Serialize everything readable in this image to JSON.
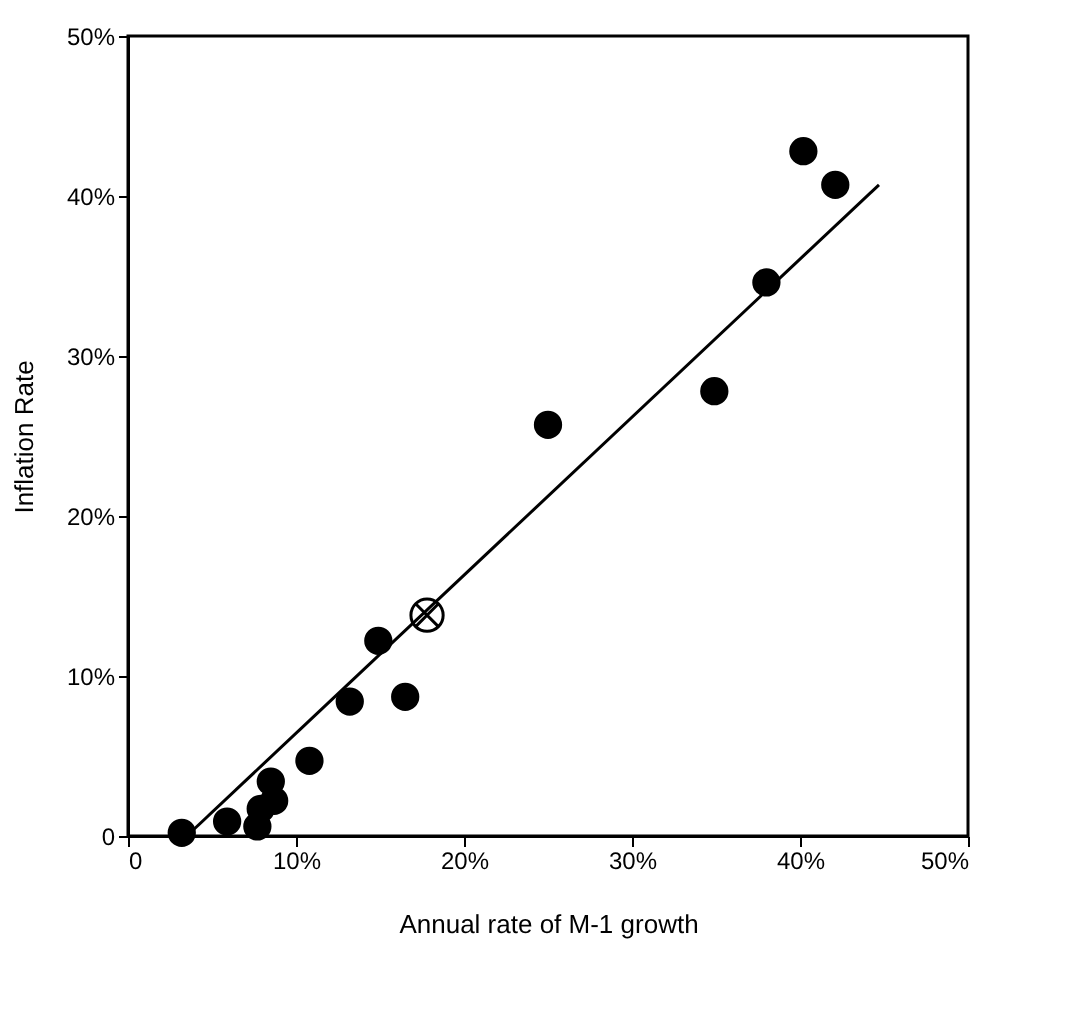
{
  "chart_data": {
    "type": "scatter",
    "xlabel": "Annual rate of M-1 growth",
    "ylabel": "Inflation Rate",
    "xlim": [
      0,
      50
    ],
    "ylim": [
      0,
      50
    ],
    "xticks": [
      {
        "value": 0,
        "label": "0"
      },
      {
        "value": 10,
        "label": "10%"
      },
      {
        "value": 20,
        "label": "20%"
      },
      {
        "value": 30,
        "label": "30%"
      },
      {
        "value": 40,
        "label": "40%"
      },
      {
        "value": 50,
        "label": "50%"
      }
    ],
    "yticks": [
      {
        "value": 0,
        "label": "0"
      },
      {
        "value": 10,
        "label": "10%"
      },
      {
        "value": 20,
        "label": "20%"
      },
      {
        "value": 30,
        "label": "30%"
      },
      {
        "value": 40,
        "label": "40%"
      },
      {
        "value": 50,
        "label": "50%"
      }
    ],
    "grid": false,
    "series": [
      {
        "type": "scatter",
        "marker": "circle",
        "color": "#000000",
        "x": [
          3.2,
          5.9,
          7.7,
          7.9,
          8.7,
          8.5,
          10.8,
          13.2,
          14.9,
          16.5,
          25.0,
          34.9,
          38.0,
          40.2,
          42.1
        ],
        "values": [
          0.2,
          0.9,
          0.6,
          1.7,
          2.2,
          3.4,
          4.7,
          8.4,
          12.2,
          8.7,
          25.7,
          27.8,
          34.6,
          42.8,
          40.7
        ]
      },
      {
        "type": "scatter",
        "marker": "cross",
        "color": "#000000",
        "x": [
          17.8
        ],
        "values": [
          13.8
        ]
      },
      {
        "type": "line",
        "marker": "none",
        "line_style": "solid",
        "color": "#000000",
        "x": [
          3.5,
          44.7
        ],
        "values": [
          0,
          40.7
        ]
      }
    ]
  }
}
